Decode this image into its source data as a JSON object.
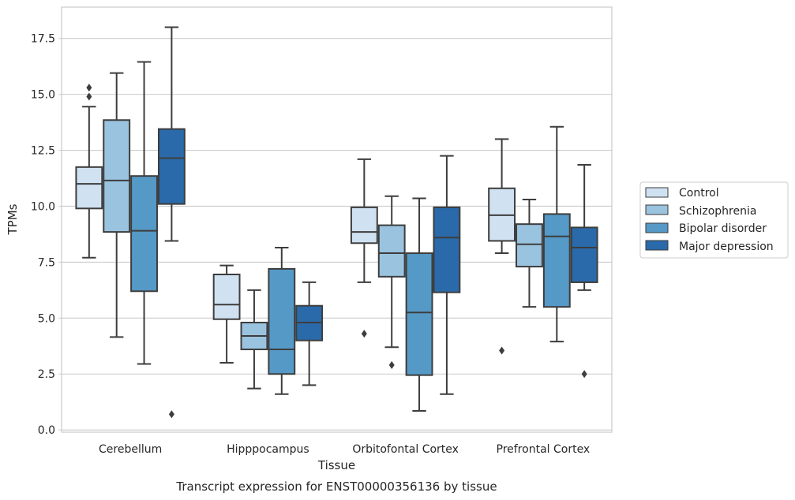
{
  "caption": "Transcript expression for ENST00000356136 by tissue",
  "chart_data": {
    "type": "boxplot",
    "title": "",
    "xlabel": "Tissue",
    "ylabel": "TPMs",
    "ylim": [
      -0.1,
      18.9
    ],
    "yticks": [
      "0.0",
      "2.5",
      "5.0",
      "7.5",
      "10.0",
      "12.5",
      "15.0",
      "17.5"
    ],
    "ytick_values": [
      0,
      2.5,
      5,
      7.5,
      10,
      12.5,
      15,
      17.5
    ],
    "grid": "horizontal",
    "legend_position": "right",
    "categories": [
      "Cerebellum",
      "Hipppocampus",
      "Orbitofontal Cortex",
      "Prefrontal Cortex"
    ],
    "series": [
      {
        "name": "Control",
        "color": "#d0e1f2",
        "boxes": [
          {
            "whislo": 7.7,
            "q1": 9.9,
            "med": 11.0,
            "q3": 11.75,
            "whishi": 14.45,
            "fliers": [
              14.9,
              15.3
            ]
          },
          {
            "whislo": 3.0,
            "q1": 4.95,
            "med": 5.6,
            "q3": 6.95,
            "whishi": 7.35,
            "fliers": []
          },
          {
            "whislo": 6.6,
            "q1": 8.35,
            "med": 8.85,
            "q3": 9.95,
            "whishi": 12.1,
            "fliers": [
              4.3
            ]
          },
          {
            "whislo": 7.9,
            "q1": 8.45,
            "med": 9.6,
            "q3": 10.8,
            "whishi": 13.0,
            "fliers": [
              3.55
            ]
          }
        ]
      },
      {
        "name": "Schizophrenia",
        "color": "#9ac3df",
        "boxes": [
          {
            "whislo": 4.15,
            "q1": 8.85,
            "med": 11.15,
            "q3": 13.85,
            "whishi": 15.95,
            "fliers": []
          },
          {
            "whislo": 1.85,
            "q1": 3.6,
            "med": 4.2,
            "q3": 4.8,
            "whishi": 6.25,
            "fliers": []
          },
          {
            "whislo": 3.7,
            "q1": 6.85,
            "med": 7.9,
            "q3": 9.15,
            "whishi": 10.45,
            "fliers": [
              2.9
            ]
          },
          {
            "whislo": 5.5,
            "q1": 7.3,
            "med": 8.3,
            "q3": 9.2,
            "whishi": 10.3,
            "fliers": []
          }
        ]
      },
      {
        "name": "Bipolar disorder",
        "color": "#5599c7",
        "boxes": [
          {
            "whislo": 2.95,
            "q1": 6.2,
            "med": 8.9,
            "q3": 11.35,
            "whishi": 16.45,
            "fliers": []
          },
          {
            "whislo": 1.6,
            "q1": 2.5,
            "med": 3.6,
            "q3": 7.2,
            "whishi": 8.15,
            "fliers": []
          },
          {
            "whislo": 0.85,
            "q1": 2.45,
            "med": 5.25,
            "q3": 7.9,
            "whishi": 10.35,
            "fliers": []
          },
          {
            "whislo": 3.95,
            "q1": 5.5,
            "med": 8.65,
            "q3": 9.65,
            "whishi": 13.55,
            "fliers": []
          }
        ]
      },
      {
        "name": "Major depression",
        "color": "#2a6aaa",
        "boxes": [
          {
            "whislo": 8.45,
            "q1": 10.1,
            "med": 12.15,
            "q3": 13.45,
            "whishi": 18.0,
            "fliers": [
              0.7
            ]
          },
          {
            "whislo": 2.0,
            "q1": 4.0,
            "med": 4.8,
            "q3": 5.55,
            "whishi": 6.6,
            "fliers": []
          },
          {
            "whislo": 1.6,
            "q1": 6.15,
            "med": 8.6,
            "q3": 9.95,
            "whishi": 12.25,
            "fliers": []
          },
          {
            "whislo": 6.25,
            "q1": 6.6,
            "med": 8.15,
            "q3": 9.05,
            "whishi": 11.85,
            "fliers": [
              2.5
            ]
          }
        ]
      }
    ]
  }
}
